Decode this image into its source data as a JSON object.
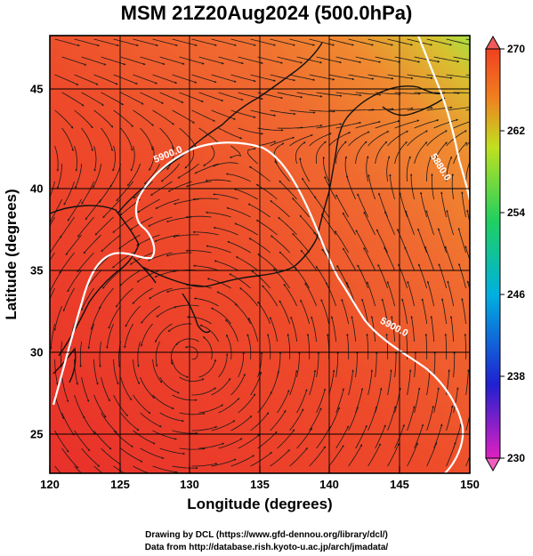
{
  "title": "MSM 21Z20Aug2024 (500.0hPa)",
  "xlabel": "Longitude (degrees)",
  "ylabel": "Latitude  (degrees)",
  "x_ticks": [
    "120",
    "125",
    "130",
    "135",
    "140",
    "145",
    "150"
  ],
  "y_ticks": [
    "25",
    "30",
    "35",
    "40",
    "45"
  ],
  "colorbar": {
    "ticks": [
      "230",
      "238",
      "246",
      "254",
      "262",
      "270"
    ],
    "colors": [
      "#e020c0",
      "#2020d0",
      "#00b0e0",
      "#20d060",
      "#c0e020",
      "#f08020",
      "#f04020"
    ]
  },
  "contour_labels": [
    "5900.0",
    "5900.0",
    "5880.0"
  ],
  "colors": {
    "warm": "#ee4a2a",
    "warmer": "#f0603a",
    "coast": "#1a1a1a",
    "contour": "#ffffff"
  },
  "credits": {
    "line1": "Drawing by DCL (https://www.gfd-dennou.org/library/dcl/)",
    "line2": "Data from http://database.rish.kyoto-u.ac.jp/arch/jmadata/"
  }
}
